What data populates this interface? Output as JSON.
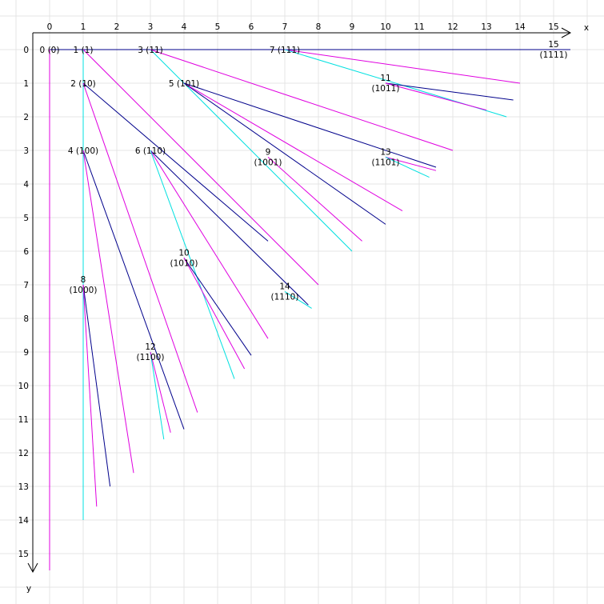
{
  "axes": {
    "x_label": "x",
    "y_label": "y",
    "x_ticks": [
      "0",
      "1",
      "2",
      "3",
      "4",
      "5",
      "6",
      "7",
      "8",
      "9",
      "10",
      "11",
      "12",
      "13",
      "14",
      "15"
    ],
    "y_ticks": [
      "0",
      "1",
      "2",
      "3",
      "4",
      "5",
      "6",
      "7",
      "8",
      "9",
      "10",
      "11",
      "12",
      "13",
      "14",
      "15"
    ],
    "axis_color": "#000000",
    "grid_color": "#e4e4e4"
  },
  "colors": {
    "dark_blue": "#00008b",
    "cyan": "#00e0e0",
    "magenta": "#e000e0"
  },
  "nodes": [
    {
      "id": 0,
      "x": 0,
      "y": 0,
      "label": "0",
      "binary": "(0)"
    },
    {
      "id": 1,
      "x": 1,
      "y": 0,
      "label": "1",
      "binary": "(1)"
    },
    {
      "id": 2,
      "x": 1,
      "y": 1,
      "label": "2",
      "binary": "(10)"
    },
    {
      "id": 3,
      "x": 3,
      "y": 0,
      "label": "3",
      "binary": "(11)"
    },
    {
      "id": 4,
      "x": 1,
      "y": 3,
      "label": "4",
      "binary": "(100)"
    },
    {
      "id": 5,
      "x": 4,
      "y": 1,
      "label": "5",
      "binary": "(101)"
    },
    {
      "id": 6,
      "x": 3,
      "y": 3,
      "label": "6",
      "binary": "(110)"
    },
    {
      "id": 7,
      "x": 7,
      "y": 0,
      "label": "7",
      "binary": "(111)"
    },
    {
      "id": 8,
      "x": 1,
      "y": 7,
      "label": "8",
      "binary": "(1000)"
    },
    {
      "id": 9,
      "x": 6.5,
      "y": 3.2,
      "label": "9",
      "binary": "(1001)"
    },
    {
      "id": 10,
      "x": 4,
      "y": 6.2,
      "label": "10",
      "binary": "(1010)"
    },
    {
      "id": 11,
      "x": 10,
      "y": 1,
      "label": "11",
      "binary": "(1011)"
    },
    {
      "id": 12,
      "x": 3,
      "y": 9,
      "label": "12",
      "binary": "(1100)"
    },
    {
      "id": 13,
      "x": 10,
      "y": 3.2,
      "label": "13",
      "binary": "(1101)"
    },
    {
      "id": 14,
      "x": 7,
      "y": 7.2,
      "label": "14",
      "binary": "(1110)"
    },
    {
      "id": 15,
      "x": 15,
      "y": 0,
      "label": "15",
      "binary": "(1111)"
    }
  ],
  "edges": [
    {
      "from": [
        0,
        0
      ],
      "to": [
        15.5,
        0
      ],
      "color": "dark_blue"
    },
    {
      "from": [
        0,
        0
      ],
      "to": [
        0,
        15.5
      ],
      "color": "magenta"
    },
    {
      "from": [
        1,
        0
      ],
      "to": [
        1,
        14
      ],
      "color": "cyan"
    },
    {
      "from": [
        1,
        1
      ],
      "to": [
        6.5,
        5.7
      ],
      "color": "dark_blue"
    },
    {
      "from": [
        1,
        1
      ],
      "to": [
        4.4,
        10.8
      ],
      "color": "magenta"
    },
    {
      "from": [
        1,
        0
      ],
      "to": [
        8,
        7
      ],
      "color": "magenta"
    },
    {
      "from": [
        3,
        0
      ],
      "to": [
        9.0,
        6.0
      ],
      "color": "cyan"
    },
    {
      "from": [
        3,
        0
      ],
      "to": [
        12,
        3.0
      ],
      "color": "magenta"
    },
    {
      "from": [
        4,
        1
      ],
      "to": [
        10,
        5.2
      ],
      "color": "dark_blue"
    },
    {
      "from": [
        4,
        1
      ],
      "to": [
        10.5,
        4.8
      ],
      "color": "magenta"
    },
    {
      "from": [
        4,
        1
      ],
      "to": [
        11.5,
        3.5
      ],
      "color": "dark_blue"
    },
    {
      "from": [
        3,
        3
      ],
      "to": [
        7.7,
        7.6
      ],
      "color": "dark_blue"
    },
    {
      "from": [
        3,
        3
      ],
      "to": [
        6.5,
        8.6
      ],
      "color": "magenta"
    },
    {
      "from": [
        3,
        3
      ],
      "to": [
        5.5,
        9.8
      ],
      "color": "cyan"
    },
    {
      "from": [
        1,
        3
      ],
      "to": [
        4.0,
        11.3
      ],
      "color": "dark_blue"
    },
    {
      "from": [
        1,
        3
      ],
      "to": [
        2.5,
        12.6
      ],
      "color": "magenta"
    },
    {
      "from": [
        7,
        0
      ],
      "to": [
        14,
        1.0
      ],
      "color": "magenta"
    },
    {
      "from": [
        7,
        0
      ],
      "to": [
        13.6,
        2.0
      ],
      "color": "cyan"
    },
    {
      "from": [
        10,
        1
      ],
      "to": [
        13.8,
        1.5
      ],
      "color": "dark_blue"
    },
    {
      "from": [
        10,
        1
      ],
      "to": [
        13.0,
        1.8
      ],
      "color": "magenta"
    },
    {
      "from": [
        6.5,
        3.2
      ],
      "to": [
        9.3,
        5.7
      ],
      "color": "magenta"
    },
    {
      "from": [
        10,
        3.2
      ],
      "to": [
        11.5,
        3.6
      ],
      "color": "magenta"
    },
    {
      "from": [
        10,
        3.2
      ],
      "to": [
        11.3,
        3.8
      ],
      "color": "cyan"
    },
    {
      "from": [
        4,
        6.2
      ],
      "to": [
        6.0,
        9.1
      ],
      "color": "dark_blue"
    },
    {
      "from": [
        4,
        6.2
      ],
      "to": [
        5.8,
        9.5
      ],
      "color": "magenta"
    },
    {
      "from": [
        7,
        7.2
      ],
      "to": [
        7.8,
        7.7
      ],
      "color": "cyan"
    },
    {
      "from": [
        1,
        7
      ],
      "to": [
        1.8,
        13.0
      ],
      "color": "dark_blue"
    },
    {
      "from": [
        1,
        7
      ],
      "to": [
        1.4,
        13.6
      ],
      "color": "magenta"
    },
    {
      "from": [
        3,
        9
      ],
      "to": [
        3.4,
        11.6
      ],
      "color": "cyan"
    },
    {
      "from": [
        3,
        9
      ],
      "to": [
        3.6,
        11.4
      ],
      "color": "magenta"
    }
  ]
}
